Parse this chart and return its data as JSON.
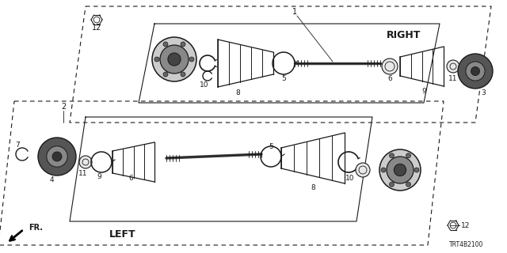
{
  "bg_color": "#ffffff",
  "line_color": "#1a1a1a",
  "diagram_code": "TRT4B2100",
  "right_label": "RIGHT",
  "left_label": "LEFT",
  "fr_label": "FR.",
  "fig_w": 6.4,
  "fig_h": 3.2,
  "dpi": 100
}
